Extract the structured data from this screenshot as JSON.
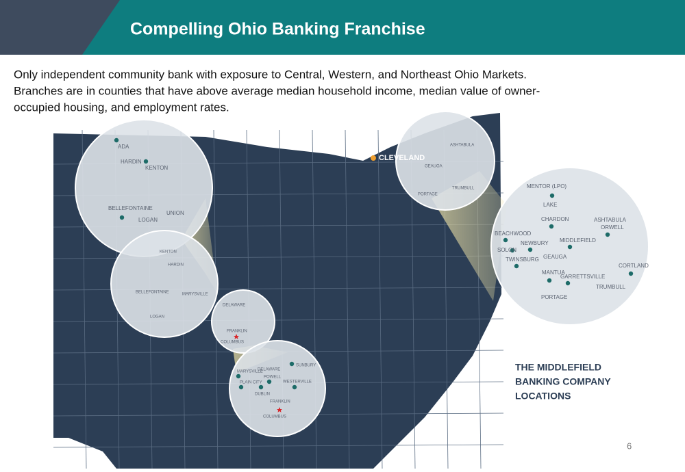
{
  "header": {
    "title": "Compelling Ohio Banking Franchise"
  },
  "body": {
    "lines": [
      "Only independent community bank with exposure to Central, Western, and Northeast Ohio Markets.",
      "Branches are in counties that have above average median household income, median value of owner-",
      "occupied housing, and employment rates."
    ]
  },
  "map": {
    "city": "CLEVELAND",
    "northwest_zoom": [
      "ADA",
      "HARDIN",
      "KENTON",
      "BELLEFONTAINE",
      "LOGAN",
      "UNION"
    ],
    "west_central": [
      "KENTON",
      "HARDIN",
      "BELLEFONTAINE",
      "MARYSVILLE",
      "LOGAN"
    ],
    "central": [
      "DELAWARE",
      "FRANKLIN",
      "COLUMBUS"
    ],
    "columbus_zoom": [
      "SUNBURY",
      "MARYSVILLE",
      "DELAWARE",
      "POWELL",
      "PLAIN CITY",
      "WESTERVILLE",
      "DUBLIN",
      "FRANKLIN",
      "COLUMBUS"
    ],
    "northeast": [
      "ASHTABULA",
      "GEAUGA",
      "TRUMBULL",
      "PORTAGE"
    ],
    "northeast_zoom": [
      "MENTOR (LPO)",
      "LAKE",
      "ASHTABULA",
      "CHARDON",
      "ORWELL",
      "BEACHWOOD",
      "NEWBURY",
      "MIDDLEFIELD",
      "SOLON",
      "TWINSBURG",
      "GEAUGA",
      "CORTLAND",
      "MANTUA",
      "GARRETTSVILLE",
      "TRUMBULL",
      "PORTAGE"
    ],
    "legend": [
      "THE MIDDLEFIELD",
      "BANKING COMPANY",
      "LOCATIONS"
    ]
  },
  "footer": {
    "page": "6"
  }
}
